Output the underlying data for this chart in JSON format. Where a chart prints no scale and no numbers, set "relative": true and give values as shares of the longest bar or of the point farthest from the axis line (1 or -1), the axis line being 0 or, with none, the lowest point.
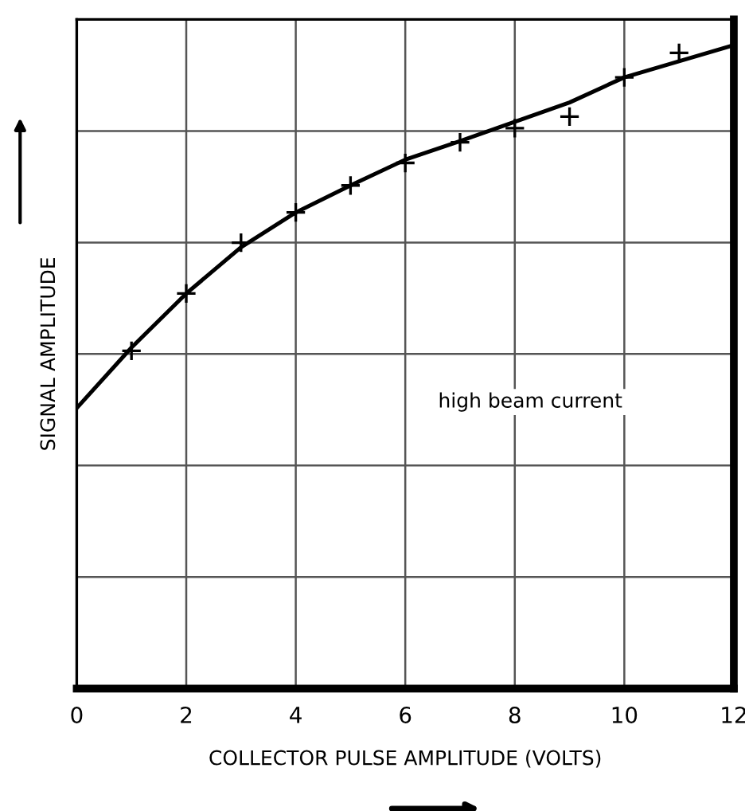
{
  "chart_data": {
    "type": "line",
    "xlabel": "COLLECTOR PULSE AMPLITUDE (VOLTS)",
    "ylabel": "SIGNAL AMPLITUDE",
    "relative": true,
    "xlim": [
      0,
      12
    ],
    "xticks": [
      0,
      2,
      4,
      6,
      8,
      10,
      12
    ],
    "grid": true,
    "legend": false,
    "annotations": [
      "high beam current"
    ],
    "series": [
      {
        "color": "#000000",
        "marker": "none",
        "line_style": "solid",
        "x": [
          0,
          1,
          2,
          3,
          4,
          5,
          6,
          7,
          8,
          9,
          10,
          11,
          12
        ],
        "values": [
          0.436,
          0.53,
          0.614,
          0.686,
          0.74,
          0.782,
          0.822,
          0.851,
          0.881,
          0.911,
          0.95,
          0.975,
          1.0
        ]
      },
      {
        "type": "scatter",
        "color": "#000000",
        "marker": "cross",
        "x": [
          1,
          2,
          3,
          4,
          5,
          6,
          7,
          8,
          9,
          10,
          11
        ],
        "values": [
          0.525,
          0.614,
          0.693,
          0.74,
          0.782,
          0.817,
          0.849,
          0.871,
          0.889,
          0.95,
          0.988
        ]
      }
    ]
  }
}
